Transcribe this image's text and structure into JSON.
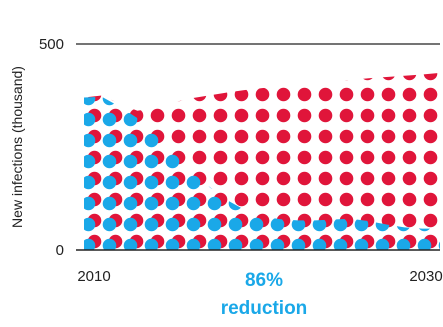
{
  "chart_data": {
    "type": "area",
    "x": [
      2010,
      2011,
      2012,
      2013,
      2014,
      2015,
      2016,
      2017,
      2018,
      2019,
      2020,
      2021,
      2022,
      2023,
      2024,
      2025,
      2026,
      2027,
      2028,
      2029,
      2030
    ],
    "series": [
      {
        "color": "#e0153a",
        "values": [
          370,
          375,
          355,
          338,
          345,
          358,
          368,
          375,
          382,
          388,
          393,
          398,
          402,
          406,
          410,
          413,
          417,
          420,
          423,
          426,
          430
        ]
      },
      {
        "color": "#1aa8e8",
        "values": [
          370,
          372,
          348,
          320,
          285,
          240,
          195,
          155,
          122,
          98,
          82,
          75,
          72,
          72,
          74,
          76,
          70,
          62,
          55,
          52,
          52
        ]
      }
    ],
    "xlabel": "",
    "ylabel": "New infections (thousand)",
    "xlim": [
      2010,
      2030
    ],
    "ylim": [
      0,
      500
    ],
    "yticks": [
      "0",
      "500"
    ],
    "xticks": [
      "2010",
      "2030"
    ],
    "annotation": [
      "86%",
      "reduction"
    ],
    "grid": false,
    "legend": "none"
  }
}
